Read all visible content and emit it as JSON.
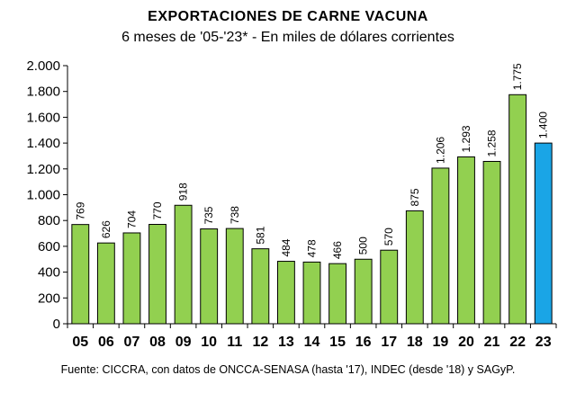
{
  "chart_data": {
    "type": "bar",
    "title": "EXPORTACIONES DE CARNE VACUNA",
    "subtitle": "6 meses de '05-'23* - En miles de dólares corrientes",
    "source": "Fuente: CICCRA, con datos de ONCCA-SENASA (hasta '17), INDEC (desde '18) y SAGyP.",
    "categories": [
      "05",
      "06",
      "07",
      "08",
      "09",
      "10",
      "11",
      "12",
      "13",
      "14",
      "15",
      "16",
      "17",
      "18",
      "19",
      "20",
      "21",
      "22",
      "23"
    ],
    "values": [
      769,
      626,
      704,
      770,
      918,
      735,
      738,
      581,
      484,
      478,
      466,
      500,
      570,
      875,
      1206,
      1293,
      1258,
      1775,
      1400
    ],
    "data_labels": [
      "769",
      "626",
      "704",
      "770",
      "918",
      "735",
      "738",
      "581",
      "484",
      "478",
      "466",
      "500",
      "570",
      "875",
      "1.206",
      "1.293",
      "1.258",
      "1.775",
      "1.400"
    ],
    "ylim": [
      0,
      2000
    ],
    "yticks": [
      0,
      200,
      400,
      600,
      800,
      1000,
      1200,
      1400,
      1600,
      1800,
      2000
    ],
    "ytick_labels": [
      "0",
      "200",
      "400",
      "600",
      "800",
      "1.000",
      "1.200",
      "1.400",
      "1.600",
      "1.800",
      "2.000"
    ],
    "colors": {
      "default": "#92d050",
      "highlight": "#1aa5e6"
    },
    "highlight_category": "23",
    "grid": false,
    "legend": "none"
  }
}
